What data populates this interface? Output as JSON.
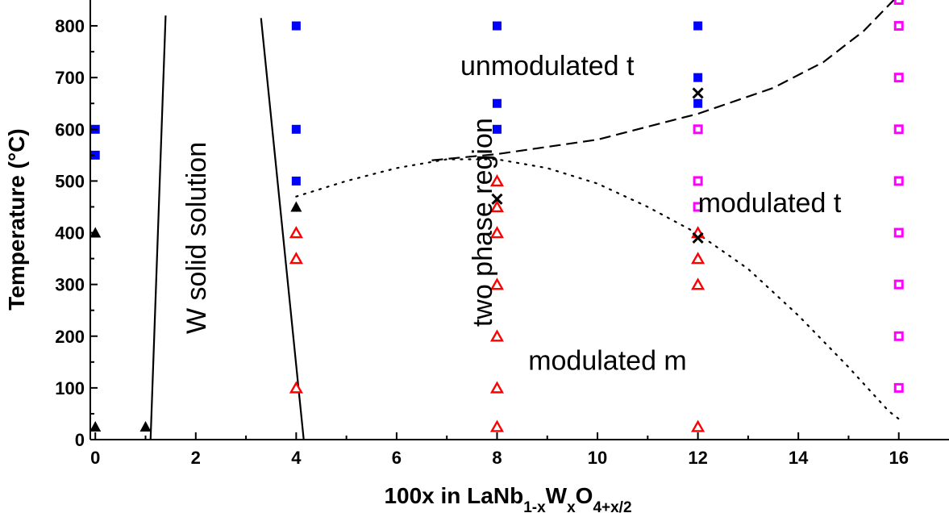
{
  "chart_data": {
    "type": "scatter",
    "xlabel": {
      "main": "100x in LaNb",
      "sub1": "1-x",
      "mid": "W",
      "sub2": "x",
      "end": "O",
      "sub3": "4+x/2"
    },
    "ylabel": "Temperature (°C)",
    "xlim": [
      -0.1,
      17
    ],
    "ylim": [
      0,
      850
    ],
    "x_ticks": [
      0,
      2,
      4,
      6,
      8,
      10,
      12,
      14,
      16
    ],
    "y_ticks": [
      0,
      100,
      200,
      300,
      400,
      500,
      600,
      700,
      800
    ],
    "grid": false,
    "legend": "none",
    "region_labels": [
      {
        "text": "unmodulated t",
        "x": 9.0,
        "y": 705,
        "rotate": 0,
        "anchor": "middle"
      },
      {
        "text": "modulated t",
        "x": 12.0,
        "y": 440,
        "rotate": 0,
        "anchor": "start"
      },
      {
        "text": "modulated m",
        "x": 10.2,
        "y": 135,
        "rotate": 0,
        "anchor": "middle"
      },
      {
        "text": "W solid solution",
        "x": 2.2,
        "y": 390,
        "rotate": -90,
        "anchor": "middle"
      },
      {
        "text": "two phase region",
        "x": 7.9,
        "y": 420,
        "rotate": -90,
        "anchor": "middle"
      }
    ],
    "series": [
      {
        "marker": "filled-square",
        "color": "#0000ff",
        "points": [
          [
            0,
            600
          ],
          [
            0,
            550
          ],
          [
            4,
            800
          ],
          [
            4,
            600
          ],
          [
            4,
            500
          ],
          [
            8,
            800
          ],
          [
            8,
            650
          ],
          [
            8,
            600
          ],
          [
            12,
            800
          ],
          [
            12,
            700
          ],
          [
            12,
            650
          ]
        ]
      },
      {
        "marker": "filled-triangle",
        "color": "#000000",
        "points": [
          [
            0,
            400
          ],
          [
            0,
            25
          ],
          [
            1,
            25
          ],
          [
            4,
            450
          ]
        ]
      },
      {
        "marker": "open-triangle",
        "color": "#ff0000",
        "points": [
          [
            4,
            400
          ],
          [
            4,
            350
          ],
          [
            4,
            100
          ],
          [
            8,
            500
          ],
          [
            8,
            450
          ],
          [
            8,
            400
          ],
          [
            8,
            300
          ],
          [
            8,
            200
          ],
          [
            8,
            100
          ],
          [
            8,
            25
          ],
          [
            12,
            400
          ],
          [
            12,
            350
          ],
          [
            12,
            300
          ],
          [
            12,
            25
          ]
        ]
      },
      {
        "marker": "open-square",
        "color": "#ff00ff",
        "points": [
          [
            16,
            850
          ],
          [
            16,
            800
          ],
          [
            16,
            700
          ],
          [
            16,
            600
          ],
          [
            16,
            500
          ],
          [
            16,
            400
          ],
          [
            16,
            300
          ],
          [
            16,
            200
          ],
          [
            16,
            100
          ],
          [
            12,
            600
          ],
          [
            12,
            500
          ],
          [
            12,
            450
          ]
        ]
      },
      {
        "marker": "cross",
        "color": "#000000",
        "points": [
          [
            8,
            465
          ],
          [
            12,
            670
          ],
          [
            12,
            390
          ]
        ]
      }
    ],
    "boundaries": [
      {
        "style": "solid",
        "points": [
          [
            1.1,
            0
          ],
          [
            1.4,
            820
          ]
        ]
      },
      {
        "style": "solid",
        "points": [
          [
            3.3,
            815
          ],
          [
            4.15,
            0
          ]
        ]
      },
      {
        "style": "dashed",
        "points": [
          [
            6.7,
            540
          ],
          [
            8,
            552
          ],
          [
            10,
            580
          ],
          [
            12,
            630
          ],
          [
            13.5,
            680
          ],
          [
            14.5,
            730
          ],
          [
            15.3,
            790
          ],
          [
            15.9,
            850
          ]
        ]
      },
      {
        "style": "dotted",
        "points": [
          [
            4,
            470
          ],
          [
            5,
            500
          ],
          [
            6,
            525
          ],
          [
            7,
            542
          ],
          [
            8,
            542
          ],
          [
            9,
            525
          ],
          [
            10,
            495
          ],
          [
            11,
            450
          ],
          [
            12,
            398
          ],
          [
            13,
            330
          ],
          [
            14,
            240
          ],
          [
            15,
            140
          ],
          [
            15.8,
            55
          ],
          [
            16,
            40
          ]
        ]
      }
    ]
  }
}
